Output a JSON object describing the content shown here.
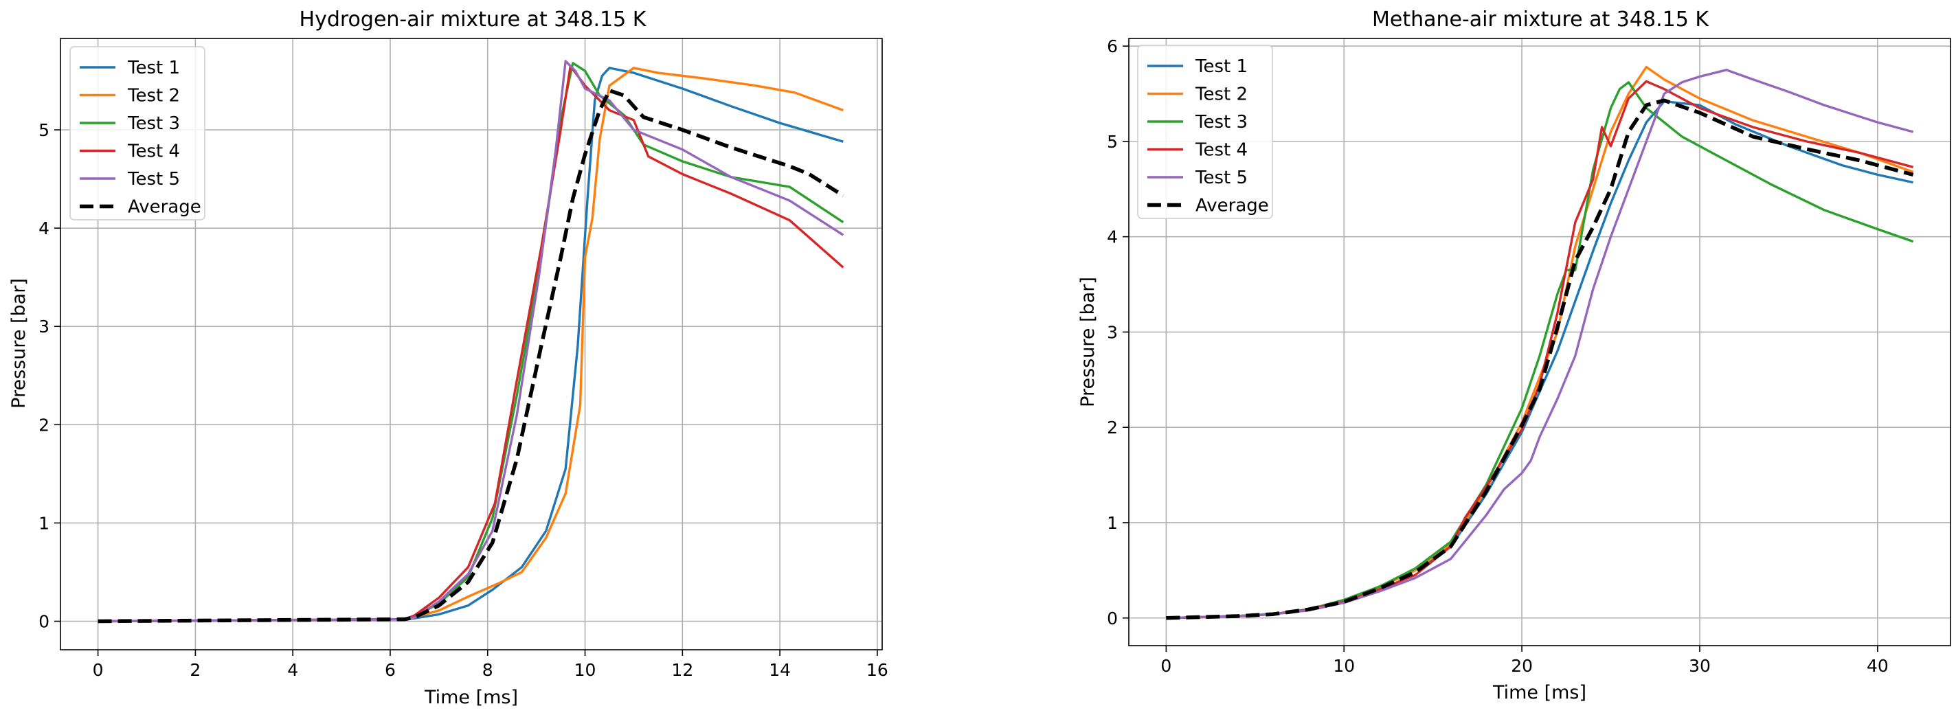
{
  "chart_data": [
    {
      "type": "line",
      "title": "Hydrogen-air mixture at 348.15 K",
      "xlabel": "Time [ms]",
      "ylabel": "Pressure [bar]",
      "xlim": [
        -0.77,
        16.1
      ],
      "ylim": [
        -0.29,
        5.93
      ],
      "xticks": [
        0,
        2,
        4,
        6,
        8,
        10,
        12,
        14,
        16
      ],
      "yticks": [
        0,
        1,
        2,
        3,
        4,
        5
      ],
      "grid": true,
      "legend_position": "top-left",
      "series": [
        {
          "name": "Test 1",
          "color": "#1f77b4",
          "dash": "solid",
          "x": [
            0,
            6.3,
            6.5,
            7.0,
            7.6,
            8.1,
            8.7,
            9.2,
            9.6,
            9.85,
            10.05,
            10.2,
            10.35,
            10.5,
            11.0,
            12.0,
            13.0,
            14.0,
            15.3
          ],
          "y": [
            0,
            0.02,
            0.03,
            0.07,
            0.16,
            0.32,
            0.55,
            0.92,
            1.55,
            2.8,
            4.3,
            5.3,
            5.55,
            5.63,
            5.58,
            5.42,
            5.24,
            5.07,
            4.88
          ]
        },
        {
          "name": "Test 2",
          "color": "#ff7f0e",
          "dash": "solid",
          "x": [
            0,
            6.3,
            6.5,
            7.0,
            7.6,
            8.2,
            8.7,
            9.2,
            9.6,
            9.9,
            10.0,
            10.15,
            10.3,
            10.5,
            11.0,
            11.5,
            12.5,
            13.5,
            14.3,
            15.3
          ],
          "y": [
            0,
            0.02,
            0.04,
            0.11,
            0.25,
            0.38,
            0.5,
            0.85,
            1.3,
            2.2,
            3.7,
            4.1,
            4.9,
            5.45,
            5.63,
            5.58,
            5.52,
            5.45,
            5.38,
            5.2
          ]
        },
        {
          "name": "Test 3",
          "color": "#2ca02c",
          "dash": "solid",
          "x": [
            0,
            6.3,
            6.5,
            7.0,
            7.6,
            8.1,
            8.6,
            9.1,
            9.5,
            9.75,
            10.0,
            10.3,
            10.8,
            11.2,
            12.0,
            13.0,
            14.2,
            15.3
          ],
          "y": [
            0,
            0.02,
            0.05,
            0.18,
            0.45,
            1.05,
            2.3,
            3.7,
            5.1,
            5.68,
            5.6,
            5.35,
            5.15,
            4.85,
            4.68,
            4.52,
            4.42,
            4.06
          ]
        },
        {
          "name": "Test 4",
          "color": "#d62728",
          "dash": "solid",
          "x": [
            0,
            6.3,
            6.5,
            7.0,
            7.6,
            8.15,
            8.6,
            9.1,
            9.5,
            9.7,
            10.0,
            10.5,
            11.0,
            11.3,
            12.0,
            13.0,
            14.2,
            15.3
          ],
          "y": [
            0,
            0.02,
            0.06,
            0.24,
            0.55,
            1.2,
            2.45,
            3.8,
            5.0,
            5.65,
            5.45,
            5.2,
            5.1,
            4.73,
            4.55,
            4.35,
            4.08,
            3.6
          ]
        },
        {
          "name": "Test 5",
          "color": "#9467bd",
          "dash": "solid",
          "x": [
            0,
            6.3,
            6.5,
            7.0,
            7.6,
            8.1,
            8.6,
            9.05,
            9.4,
            9.6,
            9.8,
            10.0,
            10.5,
            11.0,
            12.0,
            13.0,
            14.2,
            15.3
          ],
          "y": [
            0,
            0.02,
            0.04,
            0.2,
            0.48,
            0.92,
            2.1,
            3.5,
            4.8,
            5.7,
            5.6,
            5.42,
            5.3,
            5.0,
            4.8,
            4.52,
            4.28,
            3.93
          ]
        },
        {
          "name": "Average",
          "color": "#000000",
          "dash": "dashed",
          "x": [
            0,
            6.3,
            6.5,
            7.0,
            7.6,
            8.1,
            8.6,
            9.1,
            9.5,
            9.75,
            10.0,
            10.3,
            10.5,
            10.8,
            11.2,
            12.0,
            13.0,
            14.2,
            14.6,
            15.3
          ],
          "y": [
            0,
            0.02,
            0.04,
            0.16,
            0.4,
            0.8,
            1.65,
            2.8,
            3.7,
            4.3,
            4.75,
            5.2,
            5.4,
            5.35,
            5.13,
            5.0,
            4.82,
            4.63,
            4.55,
            4.33
          ]
        }
      ]
    },
    {
      "type": "line",
      "title": "Methane-air mixture at 348.15 K",
      "xlabel": "Time [ms]",
      "ylabel": "Pressure [bar]",
      "xlim": [
        -2.1,
        44.1
      ],
      "ylim": [
        -0.29,
        6.08
      ],
      "xticks": [
        0,
        10,
        20,
        30,
        40
      ],
      "yticks": [
        0,
        1,
        2,
        3,
        4,
        5,
        6
      ],
      "grid": true,
      "legend_position": "top-left",
      "series": [
        {
          "name": "Test 1",
          "color": "#1f77b4",
          "dash": "solid",
          "x": [
            0,
            2,
            4,
            6,
            8,
            10,
            12,
            14,
            16,
            18,
            20,
            22,
            24,
            25,
            26,
            27,
            28,
            30,
            32,
            35,
            38,
            40,
            42
          ],
          "y": [
            0,
            0.01,
            0.02,
            0.04,
            0.09,
            0.18,
            0.33,
            0.5,
            0.75,
            1.3,
            1.95,
            2.8,
            3.85,
            4.35,
            4.8,
            5.2,
            5.42,
            5.38,
            5.18,
            4.95,
            4.75,
            4.65,
            4.57
          ]
        },
        {
          "name": "Test 2",
          "color": "#ff7f0e",
          "dash": "solid",
          "x": [
            0,
            2,
            4,
            6,
            8,
            10,
            12,
            14,
            16,
            18,
            20,
            22,
            23,
            24,
            25,
            26,
            27,
            28,
            30,
            33,
            36,
            39,
            42
          ],
          "y": [
            0,
            0.01,
            0.02,
            0.04,
            0.09,
            0.18,
            0.32,
            0.5,
            0.78,
            1.35,
            2.05,
            3.0,
            3.9,
            4.5,
            5.1,
            5.5,
            5.78,
            5.65,
            5.45,
            5.22,
            5.05,
            4.88,
            4.68
          ]
        },
        {
          "name": "Test 3",
          "color": "#2ca02c",
          "dash": "solid",
          "x": [
            0,
            2,
            4,
            6,
            8,
            10,
            12,
            14,
            16,
            18,
            20,
            21,
            22,
            22.5,
            23,
            24,
            25,
            25.5,
            26,
            27,
            29,
            31,
            34,
            37,
            40,
            42
          ],
          "y": [
            0,
            0.01,
            0.02,
            0.04,
            0.09,
            0.19,
            0.33,
            0.52,
            0.8,
            1.4,
            2.2,
            2.75,
            3.4,
            3.65,
            3.65,
            4.7,
            5.35,
            5.55,
            5.62,
            5.35,
            5.05,
            4.85,
            4.55,
            4.28,
            4.08,
            3.95
          ]
        },
        {
          "name": "Test 4",
          "color": "#d62728",
          "dash": "solid",
          "x": [
            0,
            2,
            4,
            6,
            8,
            10,
            12,
            14,
            16,
            16.8,
            18,
            20,
            21,
            22,
            23,
            24,
            24.5,
            25,
            26,
            27,
            28,
            30,
            33,
            36,
            39,
            42
          ],
          "y": [
            0,
            0.01,
            0.02,
            0.04,
            0.09,
            0.17,
            0.3,
            0.45,
            0.75,
            1.05,
            1.38,
            1.98,
            2.45,
            3.2,
            4.15,
            4.6,
            5.15,
            4.95,
            5.45,
            5.63,
            5.55,
            5.35,
            5.15,
            5.0,
            4.88,
            4.73
          ]
        },
        {
          "name": "Test 5",
          "color": "#9467bd",
          "dash": "solid",
          "x": [
            0,
            2,
            4,
            6,
            8,
            10,
            12,
            14,
            16,
            17,
            18,
            19,
            20,
            20.5,
            21,
            22,
            23,
            24,
            25,
            26,
            27,
            28,
            29,
            30,
            31.5,
            33,
            35,
            37,
            40,
            42
          ],
          "y": [
            0,
            0.01,
            0.02,
            0.04,
            0.08,
            0.16,
            0.28,
            0.42,
            0.62,
            0.85,
            1.08,
            1.35,
            1.52,
            1.65,
            1.9,
            2.3,
            2.75,
            3.45,
            4.0,
            4.5,
            5.0,
            5.5,
            5.62,
            5.68,
            5.75,
            5.65,
            5.52,
            5.38,
            5.2,
            5.1
          ]
        },
        {
          "name": "Average",
          "color": "#000000",
          "dash": "dashed",
          "x": [
            0,
            2,
            4,
            6,
            8,
            10,
            12,
            14,
            16,
            18,
            20,
            21,
            22,
            23,
            24,
            25,
            26,
            27,
            28,
            30,
            33,
            36,
            39,
            42
          ],
          "y": [
            0,
            0.01,
            0.02,
            0.04,
            0.09,
            0.17,
            0.31,
            0.48,
            0.75,
            1.33,
            2.02,
            2.4,
            3.05,
            3.75,
            4.1,
            4.5,
            5.1,
            5.38,
            5.43,
            5.3,
            5.05,
            4.92,
            4.8,
            4.65
          ]
        }
      ]
    }
  ]
}
